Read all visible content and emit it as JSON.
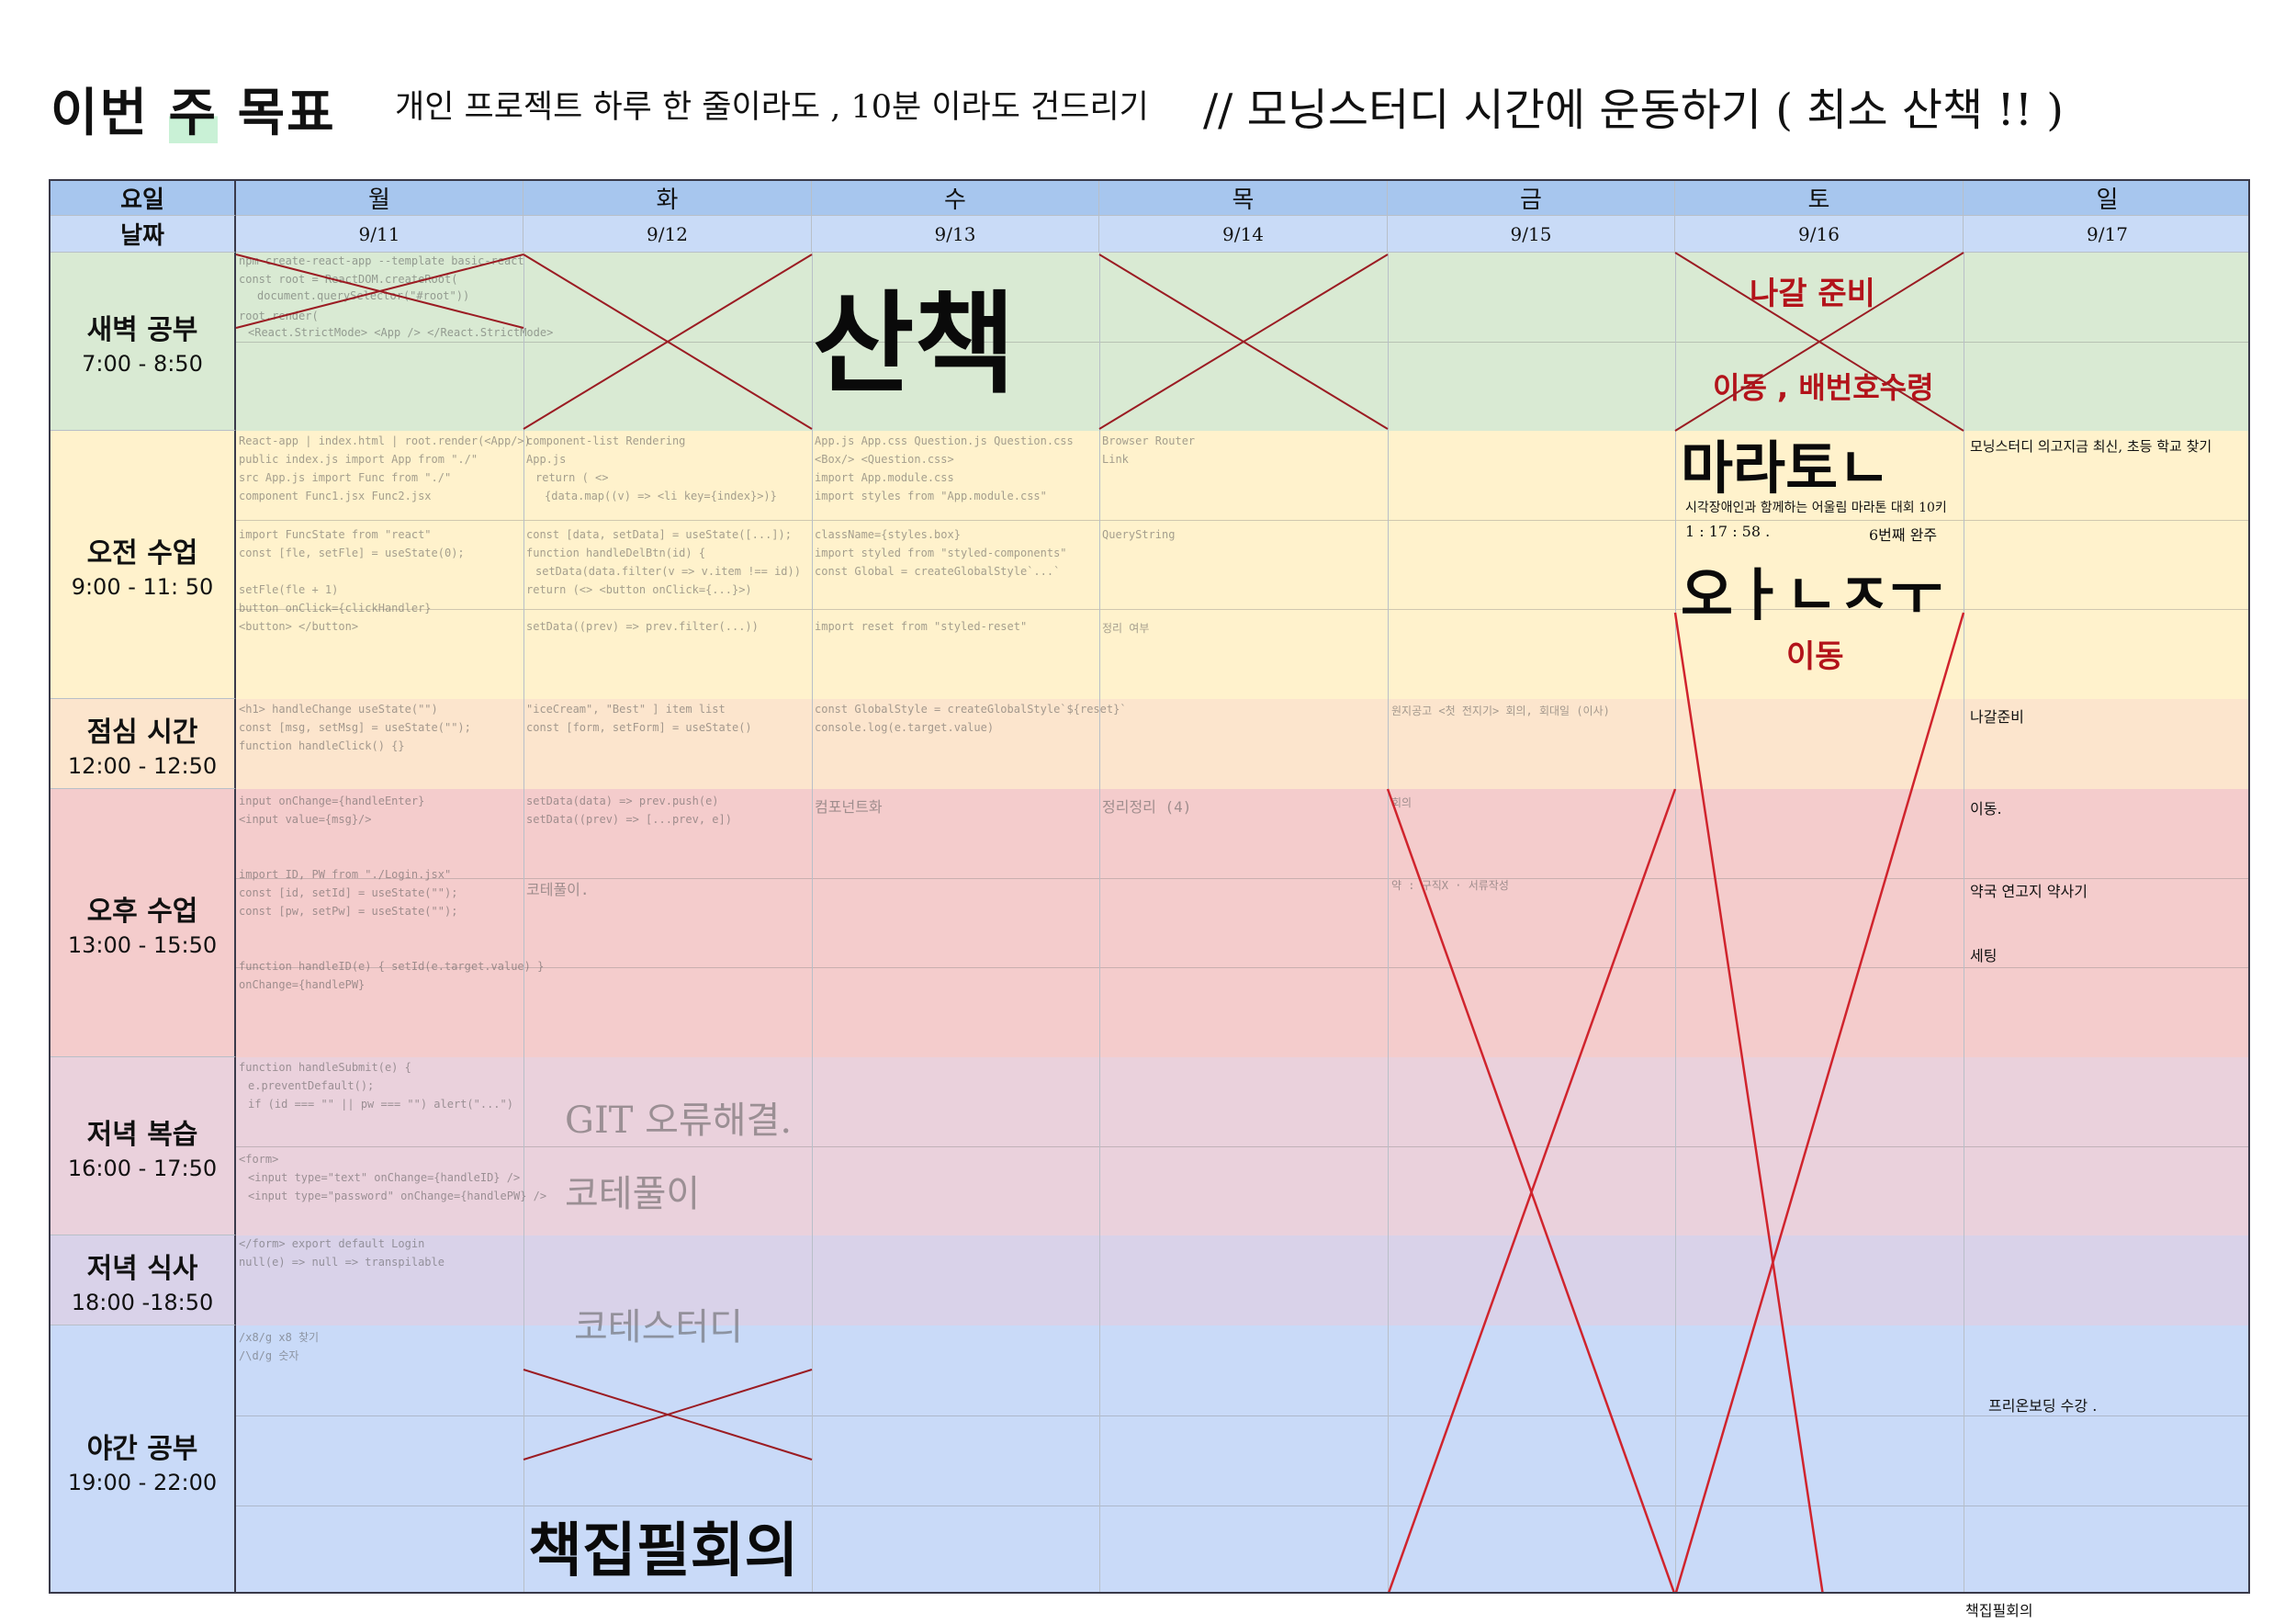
{
  "header": {
    "title_before": "이번 ",
    "title_mark": "주",
    "title_after": " 목표",
    "goal_1": "개인 프로젝트  하루 한 줄이라도 , 10분 이라도  건드리기",
    "goal_2": "//  모닝스터디 시간에 운동하기 ( 최소 산책 !! )"
  },
  "table": {
    "day_header_label": "요일",
    "date_header_label": "날짜",
    "days": [
      "월",
      "화",
      "수",
      "목",
      "금",
      "토",
      "일"
    ],
    "dates": [
      "9/11",
      "9/12",
      "9/13",
      "9/14",
      "9/15",
      "9/16",
      "9/17"
    ],
    "slots": [
      {
        "name": "새벽 공부",
        "time": "7:00 - 8:50",
        "color": "#d9ead3"
      },
      {
        "name": "오전 수업",
        "time": "9:00 - 11: 50",
        "color": "#fff2cc"
      },
      {
        "name": "점심 시간",
        "time": "12:00 - 12:50",
        "color": "#fce5cd"
      },
      {
        "name": "오후 수업",
        "time": "13:00 - 15:50",
        "color": "#f4cccc"
      },
      {
        "name": "저녁 복습",
        "time": "16:00 - 17:50",
        "color": "#ead1dc"
      },
      {
        "name": "저녁 식사",
        "time": "18:00 -18:50",
        "color": "#d9d2e9"
      },
      {
        "name": "야간 공부",
        "time": "19:00 - 22:00",
        "color": "#c9daf8"
      }
    ]
  },
  "annotations": {
    "wed_dawn": "산책",
    "sat_dawn_1": "나갈 준비",
    "sat_dawn_2": "이동 , 배번호수령",
    "sat_marathon": "마라토ㄴ",
    "sat_race_name": "시각장애인과 함께하는 어울림 마라톤 대회 10키",
    "sat_record": "1 : 17 : 58 .",
    "sat_place": "6번째 완주",
    "sat_finish": "오ㅏㄴㅈㅜ",
    "sat_move": "이동",
    "tue_night": "책집필회의",
    "sun_morning": "모닝스터디  의고지금 최신, 초등 학교 찾기",
    "sun_lunch": "나갈준비",
    "sun_pm_1": "이동.",
    "sun_pm_2": "약국  연고지 약사기",
    "sun_pm_3": "세팅",
    "sun_night": "프리온보딩 수강 .",
    "sun_bottom": "책집필회의",
    "tue_eve_1": "GIT 오류해결.",
    "tue_eve_2": "코테풀이",
    "tue_dinner": "코테스터디",
    "tue_pm": "코테풀이.",
    "wed_lunch": "컴포넌트화",
    "fri_lunch": "원지공고 <첫 전지기> 회의, 회대일 (이사)"
  },
  "colors": {
    "cross_dark": "#9b1c23",
    "cross_red": "#d0242d",
    "annotation_red": "#b3131a",
    "header_day": "#a7c6ee",
    "header_date": "#c9dbf7",
    "highlight_green": "#c9f1d6"
  }
}
